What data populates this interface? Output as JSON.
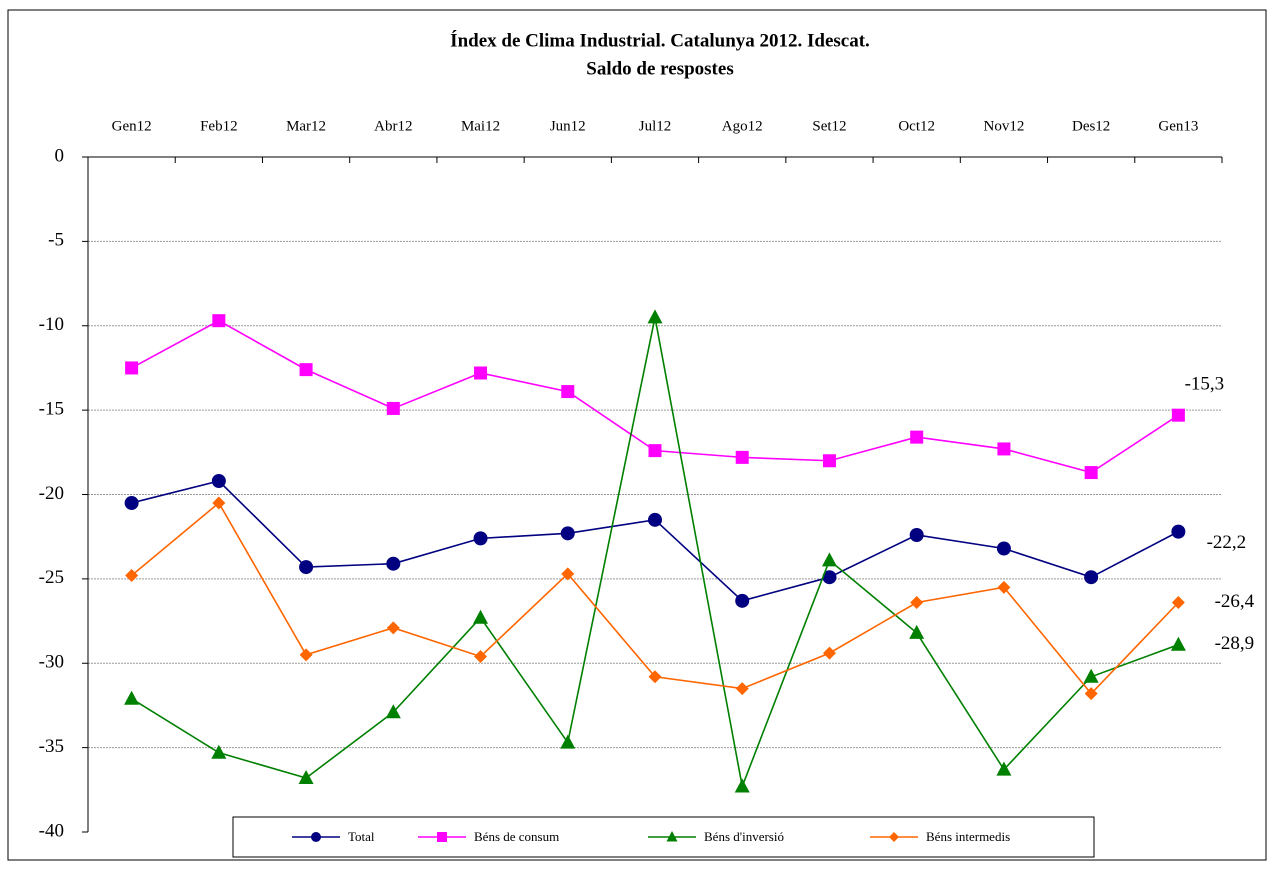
{
  "chart_data": {
    "type": "line",
    "title": "Índex de Clima Industrial. Catalunya 2012. Idescat.",
    "subtitle": "Saldo de respostes",
    "categories": [
      "Gen12",
      "Feb12",
      "Mar12",
      "Abr12",
      "Mai12",
      "Jun12",
      "Jul12",
      "Ago12",
      "Set12",
      "Oct12",
      "Nov12",
      "Des12",
      "Gen13"
    ],
    "series": [
      {
        "name": "Total",
        "color": "#000080",
        "marker": "circle",
        "values": [
          -20.5,
          -19.2,
          -24.3,
          -24.1,
          -22.6,
          -22.3,
          -21.5,
          -26.3,
          -24.9,
          -22.4,
          -23.2,
          -24.9,
          -22.2
        ],
        "value_labels": [
          null,
          null,
          null,
          null,
          null,
          null,
          null,
          null,
          null,
          null,
          null,
          null,
          "-22,2"
        ]
      },
      {
        "name": "Béns de consum",
        "color": "#ff00ff",
        "marker": "square",
        "values": [
          -12.5,
          -9.7,
          -12.6,
          -14.9,
          -12.8,
          -13.9,
          -17.4,
          -17.8,
          -18.0,
          -16.6,
          -17.3,
          -18.7,
          -15.3
        ],
        "value_labels": [
          null,
          null,
          null,
          null,
          null,
          null,
          null,
          null,
          null,
          null,
          null,
          null,
          "-15,3"
        ]
      },
      {
        "name": "Béns d'inversió",
        "color": "#008000",
        "marker": "triangle",
        "values": [
          -32.1,
          -35.3,
          -36.8,
          -32.9,
          -27.3,
          -34.7,
          -9.5,
          -37.3,
          -23.9,
          -28.2,
          -36.3,
          -30.8,
          -28.9
        ],
        "value_labels": [
          null,
          null,
          null,
          null,
          null,
          null,
          null,
          null,
          null,
          null,
          null,
          null,
          "-28,9"
        ]
      },
      {
        "name": "Béns intermedis",
        "color": "#ff6600",
        "marker": "diamond",
        "values": [
          -24.8,
          -20.5,
          -29.5,
          -27.9,
          -29.6,
          -24.7,
          -30.8,
          -31.5,
          -29.4,
          -26.4,
          -25.5,
          -31.8,
          -26.4
        ],
        "value_labels": [
          null,
          null,
          null,
          null,
          null,
          null,
          null,
          null,
          null,
          null,
          null,
          null,
          "-26,4"
        ]
      }
    ],
    "ylim": [
      -40,
      0
    ],
    "yticks": [
      0,
      -5,
      -10,
      -15,
      -20,
      -25,
      -30,
      -35,
      -40
    ],
    "grid": true,
    "legend": "bottom"
  }
}
